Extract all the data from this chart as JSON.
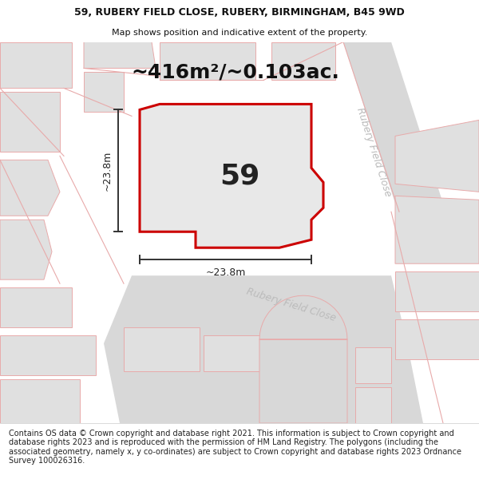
{
  "title_line1": "59, RUBERY FIELD CLOSE, RUBERY, BIRMINGHAM, B45 9WD",
  "title_line2": "Map shows position and indicative extent of the property.",
  "area_text": "~416m²/~0.103ac.",
  "label_59": "59",
  "dim_vertical": "~23.8m",
  "dim_horizontal": "~23.8m",
  "street_label_right": "Rubery Field Close",
  "street_label_bottom": "Rubery Field Close",
  "footer_text": "Contains OS data © Crown copyright and database right 2021. This information is subject to Crown copyright and database rights 2023 and is reproduced with the permission of HM Land Registry. The polygons (including the associated geometry, namely x, y co-ordinates) are subject to Crown copyright and database rights 2023 Ordnance Survey 100026316.",
  "bg_color": "#f2f2f2",
  "white": "#ffffff",
  "property_border": "#cc0000",
  "property_fill": "#e8e8e8",
  "dim_color": "#333333",
  "pink_line": "#e8aaaa",
  "street_color": "#bbbbbb",
  "building_fill": "#e0e0e0",
  "road_fill": "#d8d8d8",
  "title_fontsize": 9,
  "subtitle_fontsize": 8,
  "area_fontsize": 18,
  "label_fontsize": 26,
  "dim_fontsize": 9,
  "street_fontsize": 9,
  "footer_fontsize": 7
}
